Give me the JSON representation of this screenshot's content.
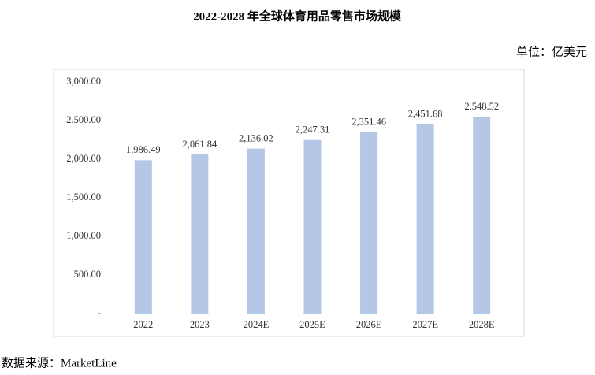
{
  "chart_data": {
    "type": "bar",
    "title": "2022-2028 年全球体育用品零售市场规模",
    "unit": "单位：亿美元",
    "source": "数据来源：MarketLine",
    "categories": [
      "2022",
      "2023",
      "2024E",
      "2025E",
      "2026E",
      "2027E",
      "2028E"
    ],
    "values": [
      1986.49,
      2061.84,
      2136.02,
      2247.31,
      2351.46,
      2451.68,
      2548.52
    ],
    "value_labels": [
      "1,986.49",
      "2,061.84",
      "2,136.02",
      "2,247.31",
      "2,351.46",
      "2,451.68",
      "2,548.52"
    ],
    "color": "#b4c7e7",
    "ylim": [
      0,
      3000
    ],
    "yticks": [
      {
        "value": 0,
        "label": "-"
      },
      {
        "value": 500,
        "label": "500.00"
      },
      {
        "value": 1000,
        "label": "1,000.00"
      },
      {
        "value": 1500,
        "label": "1,500.00"
      },
      {
        "value": 2000,
        "label": "2,000.00"
      },
      {
        "value": 2500,
        "label": "2,500.00"
      },
      {
        "value": 3000,
        "label": "3,000.00"
      }
    ],
    "grid": false
  }
}
